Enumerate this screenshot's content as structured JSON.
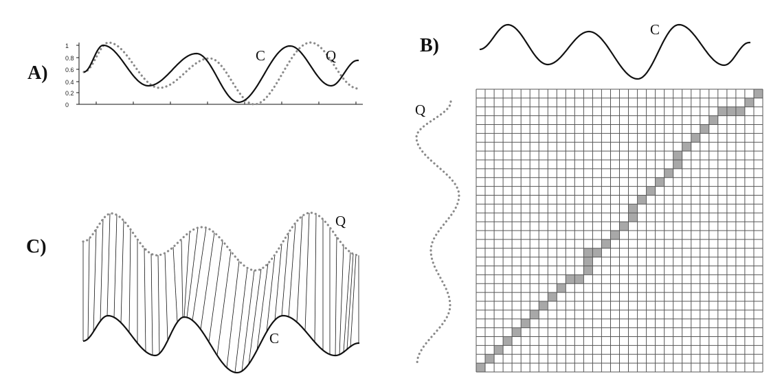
{
  "panels": {
    "a": {
      "label": "A)",
      "y_ticks": [
        "0",
        "0.2",
        "0.4",
        "0.6",
        "0.8",
        "1"
      ],
      "curve_c_label": "C",
      "curve_q_label": "Q"
    },
    "b": {
      "label": "B)",
      "curve_c_label": "C",
      "curve_q_label": "Q"
    },
    "c": {
      "label": "C)",
      "curve_c_label": "C",
      "curve_q_label": "Q"
    }
  },
  "colors": {
    "curve_c": "#111111",
    "curve_q": "#8a8a8a",
    "warp_path": "#a8a8a8"
  }
}
